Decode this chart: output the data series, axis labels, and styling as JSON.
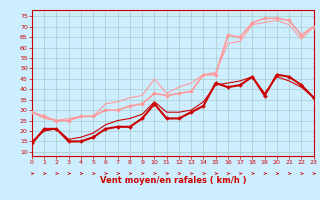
{
  "bg_color": "#cceeff",
  "grid_color": "#aacccc",
  "xlabel": "Vent moyen/en rafales ( km/h )",
  "x_ticks": [
    0,
    1,
    2,
    3,
    4,
    5,
    6,
    7,
    8,
    9,
    10,
    11,
    12,
    13,
    14,
    15,
    16,
    17,
    18,
    19,
    20,
    21,
    22,
    23
  ],
  "y_ticks": [
    10,
    15,
    20,
    25,
    30,
    35,
    40,
    45,
    50,
    55,
    60,
    65,
    70,
    75
  ],
  "ylim": [
    8,
    78
  ],
  "xlim": [
    0,
    23
  ],
  "series": [
    {
      "x": [
        0,
        1,
        2,
        3,
        4,
        5,
        6,
        7,
        8,
        9,
        10,
        11,
        12,
        13,
        14,
        15,
        16,
        17,
        18,
        19,
        20,
        21,
        22,
        23
      ],
      "y": [
        14,
        21,
        21,
        15,
        15,
        17,
        21,
        22,
        22,
        26,
        33,
        26,
        26,
        29,
        32,
        43,
        41,
        42,
        46,
        37,
        47,
        46,
        42,
        36
      ],
      "color": "#cc0000",
      "lw": 1.5,
      "marker": "D",
      "ms": 2.0,
      "zorder": 5
    },
    {
      "x": [
        0,
        1,
        2,
        3,
        4,
        5,
        6,
        7,
        8,
        9,
        10,
        11,
        12,
        13,
        14,
        15,
        16,
        17,
        18,
        19,
        20,
        21,
        22,
        23
      ],
      "y": [
        15,
        20,
        21,
        16,
        17,
        19,
        23,
        25,
        26,
        28,
        34,
        29,
        29,
        30,
        34,
        42,
        43,
        44,
        46,
        38,
        46,
        44,
        41,
        36
      ],
      "color": "#cc0000",
      "lw": 0.8,
      "marker": null,
      "ms": 0,
      "zorder": 4
    },
    {
      "x": [
        0,
        1,
        2,
        3,
        4,
        5,
        6,
        7,
        8,
        9,
        10,
        11,
        12,
        13,
        14,
        15,
        16,
        17,
        18,
        19,
        20,
        21,
        22,
        23
      ],
      "y": [
        29,
        27,
        25,
        25,
        27,
        27,
        30,
        30,
        32,
        33,
        38,
        37,
        38,
        39,
        47,
        47,
        66,
        65,
        72,
        74,
        74,
        73,
        66,
        70
      ],
      "color": "#ff9999",
      "lw": 1.2,
      "marker": "D",
      "ms": 2.0,
      "zorder": 5
    },
    {
      "x": [
        0,
        1,
        2,
        3,
        4,
        5,
        6,
        7,
        8,
        9,
        10,
        11,
        12,
        13,
        14,
        15,
        16,
        17,
        18,
        19,
        20,
        21,
        22,
        23
      ],
      "y": [
        29,
        26,
        25,
        26,
        27,
        27,
        33,
        34,
        36,
        37,
        45,
        38,
        41,
        43,
        47,
        48,
        62,
        63,
        71,
        72,
        73,
        71,
        64,
        70
      ],
      "color": "#ff9999",
      "lw": 0.8,
      "marker": null,
      "ms": 0,
      "zorder": 3
    }
  ],
  "arrow_color": "#cc0000",
  "spine_color": "#cc0000",
  "xlabel_fontsize": 6,
  "tick_fontsize": 4.5,
  "ylabel_fontsize": 5
}
